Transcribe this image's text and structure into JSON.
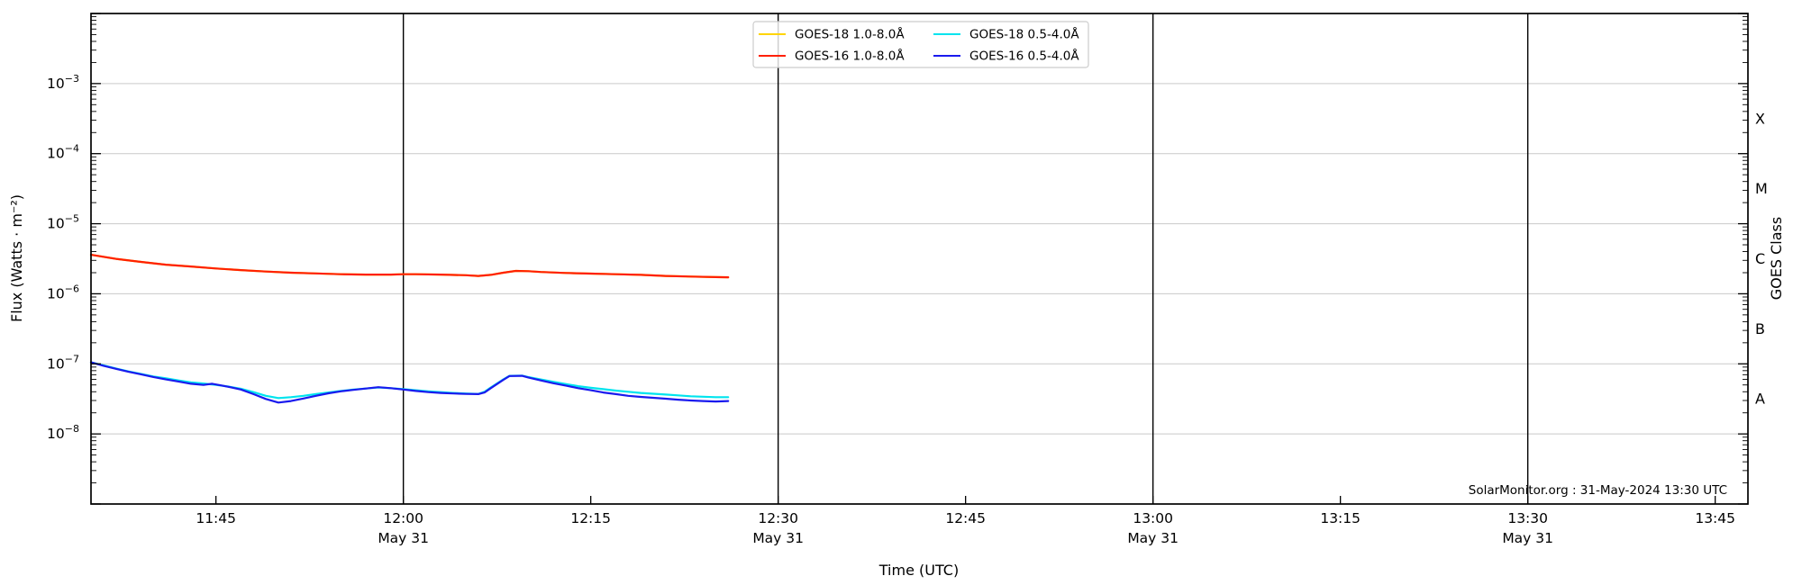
{
  "page": {
    "background": "#ffffff"
  },
  "chart_data": {
    "type": "line",
    "title": "",
    "xlabel": "Time (UTC)",
    "ylabel": "Flux (Watts · m⁻²)",
    "right_axis_label": "GOES Class",
    "annotation": "SolarMonitor.org : 31-May-2024 13:30 UTC",
    "grid": {
      "horizontal_decades": true,
      "color": "#c9c9c9"
    },
    "x_axis": {
      "unit": "minutes after 11:35 UTC on 31-May-2024",
      "window_start": "11:35",
      "window_end": "13:47",
      "major_ticks": [
        {
          "t": 10,
          "label": "11:45",
          "date": ""
        },
        {
          "t": 25,
          "label": "12:00",
          "date": "May 31"
        },
        {
          "t": 40,
          "label": "12:15",
          "date": ""
        },
        {
          "t": 55,
          "label": "12:30",
          "date": "May 31"
        },
        {
          "t": 70,
          "label": "12:45",
          "date": ""
        },
        {
          "t": 85,
          "label": "13:00",
          "date": "May 31"
        },
        {
          "t": 100,
          "label": "13:15",
          "date": ""
        },
        {
          "t": 115,
          "label": "13:30",
          "date": "May 31"
        },
        {
          "t": 130,
          "label": "13:45",
          "date": ""
        }
      ],
      "day_line_times": [
        25,
        55,
        85,
        115
      ]
    },
    "y_axis": {
      "scale": "log",
      "ylim_exponents": [
        -9,
        -2
      ],
      "tick_exponents": [
        -3,
        -4,
        -5,
        -6,
        -7,
        -8
      ]
    },
    "goes_class_labels": [
      {
        "label": "X",
        "mid_exponent": -3.5
      },
      {
        "label": "M",
        "mid_exponent": -4.5
      },
      {
        "label": "C",
        "mid_exponent": -5.5
      },
      {
        "label": "B",
        "mid_exponent": -6.5
      },
      {
        "label": "A",
        "mid_exponent": -7.5
      }
    ],
    "legend": {
      "columns": 2,
      "order": "column-major"
    },
    "series": [
      {
        "name": "GOES-18 1.0-8.0Å",
        "color": "#ffd400",
        "hidden_under": "GOES-16 1.0-8.0Å",
        "points": [
          [
            0,
            3.6e-06
          ],
          [
            2,
            3.15e-06
          ],
          [
            4,
            2.85e-06
          ],
          [
            6,
            2.6e-06
          ],
          [
            8,
            2.45e-06
          ],
          [
            10,
            2.3e-06
          ],
          [
            12,
            2.18e-06
          ],
          [
            14,
            2.08e-06
          ],
          [
            16,
            2e-06
          ],
          [
            18,
            1.95e-06
          ],
          [
            20,
            1.9e-06
          ],
          [
            22,
            1.88e-06
          ],
          [
            24,
            1.88e-06
          ],
          [
            25,
            1.9e-06
          ],
          [
            26,
            1.9e-06
          ],
          [
            28,
            1.88e-06
          ],
          [
            30,
            1.84e-06
          ],
          [
            31,
            1.8e-06
          ],
          [
            32,
            1.86e-06
          ],
          [
            33,
            2e-06
          ],
          [
            34,
            2.12e-06
          ],
          [
            35,
            2.1e-06
          ],
          [
            36,
            2.05e-06
          ],
          [
            38,
            1.98e-06
          ],
          [
            40,
            1.94e-06
          ],
          [
            42,
            1.9e-06
          ],
          [
            44,
            1.86e-06
          ],
          [
            46,
            1.8e-06
          ],
          [
            48,
            1.76e-06
          ],
          [
            50,
            1.73e-06
          ],
          [
            51,
            1.72e-06
          ]
        ]
      },
      {
        "name": "GOES-16 1.0-8.0Å",
        "color": "#ff2000",
        "points": [
          [
            0,
            3.6e-06
          ],
          [
            2,
            3.15e-06
          ],
          [
            4,
            2.85e-06
          ],
          [
            6,
            2.6e-06
          ],
          [
            8,
            2.45e-06
          ],
          [
            10,
            2.3e-06
          ],
          [
            12,
            2.18e-06
          ],
          [
            14,
            2.08e-06
          ],
          [
            16,
            2e-06
          ],
          [
            18,
            1.95e-06
          ],
          [
            20,
            1.9e-06
          ],
          [
            22,
            1.88e-06
          ],
          [
            24,
            1.88e-06
          ],
          [
            25,
            1.9e-06
          ],
          [
            26,
            1.9e-06
          ],
          [
            28,
            1.88e-06
          ],
          [
            30,
            1.84e-06
          ],
          [
            31,
            1.8e-06
          ],
          [
            32,
            1.86e-06
          ],
          [
            33,
            2e-06
          ],
          [
            34,
            2.12e-06
          ],
          [
            35,
            2.1e-06
          ],
          [
            36,
            2.05e-06
          ],
          [
            38,
            1.98e-06
          ],
          [
            40,
            1.94e-06
          ],
          [
            42,
            1.9e-06
          ],
          [
            44,
            1.86e-06
          ],
          [
            46,
            1.8e-06
          ],
          [
            48,
            1.76e-06
          ],
          [
            50,
            1.73e-06
          ],
          [
            51,
            1.72e-06
          ]
        ]
      },
      {
        "name": "GOES-18 0.5-4.0Å",
        "color": "#00e4ee",
        "points": [
          [
            0,
            1.05e-07
          ],
          [
            1,
            9.5e-08
          ],
          [
            2,
            8.6e-08
          ],
          [
            3,
            7.8e-08
          ],
          [
            4,
            7.2e-08
          ],
          [
            5,
            6.6e-08
          ],
          [
            6,
            6.2e-08
          ],
          [
            7,
            5.8e-08
          ],
          [
            8,
            5.45e-08
          ],
          [
            9,
            5.25e-08
          ],
          [
            10,
            5e-08
          ],
          [
            11,
            4.75e-08
          ],
          [
            12,
            4.4e-08
          ],
          [
            13,
            3.95e-08
          ],
          [
            14,
            3.5e-08
          ],
          [
            15,
            3.25e-08
          ],
          [
            16,
            3.35e-08
          ],
          [
            17,
            3.5e-08
          ],
          [
            18,
            3.7e-08
          ],
          [
            19,
            3.9e-08
          ],
          [
            20,
            4.1e-08
          ],
          [
            21,
            4.3e-08
          ],
          [
            22,
            4.45e-08
          ],
          [
            23,
            4.6e-08
          ],
          [
            24,
            4.5e-08
          ],
          [
            25,
            4.35e-08
          ],
          [
            26,
            4.2e-08
          ],
          [
            27,
            4.05e-08
          ],
          [
            28,
            3.95e-08
          ],
          [
            29,
            3.85e-08
          ],
          [
            30,
            3.78e-08
          ],
          [
            31,
            3.72e-08
          ],
          [
            31.5,
            4e-08
          ],
          [
            32,
            4.6e-08
          ],
          [
            33,
            6e-08
          ],
          [
            33.5,
            6.75e-08
          ],
          [
            34.5,
            6.8e-08
          ],
          [
            35,
            6.5e-08
          ],
          [
            36,
            6e-08
          ],
          [
            37,
            5.55e-08
          ],
          [
            38,
            5.15e-08
          ],
          [
            39,
            4.8e-08
          ],
          [
            40,
            4.55e-08
          ],
          [
            41,
            4.35e-08
          ],
          [
            42,
            4.15e-08
          ],
          [
            43,
            4e-08
          ],
          [
            44,
            3.85e-08
          ],
          [
            45,
            3.75e-08
          ],
          [
            46,
            3.65e-08
          ],
          [
            47,
            3.55e-08
          ],
          [
            48,
            3.45e-08
          ],
          [
            49,
            3.4e-08
          ],
          [
            50,
            3.35e-08
          ],
          [
            51,
            3.35e-08
          ]
        ]
      },
      {
        "name": "GOES-16 0.5-4.0Å",
        "color": "#1a1aee",
        "points": [
          [
            0,
            1.05e-07
          ],
          [
            1,
            9.4e-08
          ],
          [
            2,
            8.5e-08
          ],
          [
            3,
            7.7e-08
          ],
          [
            4,
            7.1e-08
          ],
          [
            5,
            6.5e-08
          ],
          [
            6,
            6e-08
          ],
          [
            7,
            5.6e-08
          ],
          [
            8,
            5.2e-08
          ],
          [
            9,
            5e-08
          ],
          [
            9.7,
            5.2e-08
          ],
          [
            10.5,
            4.9e-08
          ],
          [
            11,
            4.7e-08
          ],
          [
            12,
            4.3e-08
          ],
          [
            13,
            3.7e-08
          ],
          [
            14,
            3.15e-08
          ],
          [
            15,
            2.8e-08
          ],
          [
            16,
            2.95e-08
          ],
          [
            17,
            3.2e-08
          ],
          [
            18,
            3.5e-08
          ],
          [
            19,
            3.8e-08
          ],
          [
            20,
            4.05e-08
          ],
          [
            21,
            4.25e-08
          ],
          [
            22,
            4.45e-08
          ],
          [
            23,
            4.65e-08
          ],
          [
            24,
            4.5e-08
          ],
          [
            25,
            4.3e-08
          ],
          [
            26,
            4.1e-08
          ],
          [
            27,
            3.95e-08
          ],
          [
            28,
            3.85e-08
          ],
          [
            29,
            3.78e-08
          ],
          [
            30,
            3.72e-08
          ],
          [
            31,
            3.7e-08
          ],
          [
            31.5,
            3.9e-08
          ],
          [
            32,
            4.5e-08
          ],
          [
            33,
            5.9e-08
          ],
          [
            33.5,
            6.7e-08
          ],
          [
            34.5,
            6.75e-08
          ],
          [
            35,
            6.4e-08
          ],
          [
            36,
            5.8e-08
          ],
          [
            37,
            5.3e-08
          ],
          [
            38,
            4.9e-08
          ],
          [
            39,
            4.5e-08
          ],
          [
            40,
            4.2e-08
          ],
          [
            41,
            3.9e-08
          ],
          [
            42,
            3.7e-08
          ],
          [
            43,
            3.5e-08
          ],
          [
            44,
            3.38e-08
          ],
          [
            45,
            3.28e-08
          ],
          [
            46,
            3.18e-08
          ],
          [
            47,
            3.08e-08
          ],
          [
            48,
            3e-08
          ],
          [
            49,
            2.95e-08
          ],
          [
            50,
            2.9e-08
          ],
          [
            51,
            2.95e-08
          ]
        ]
      }
    ]
  }
}
